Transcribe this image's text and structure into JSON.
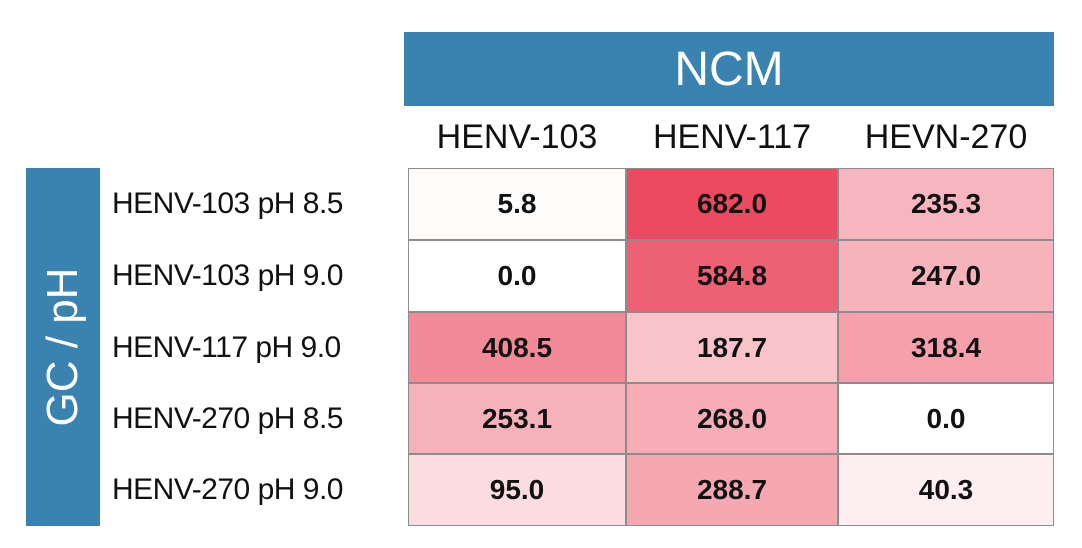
{
  "chart_data": {
    "type": "heatmap",
    "column_group_label": "NCM",
    "row_group_label": "GC / pH",
    "columns": [
      "HENV-103",
      "HENV-117",
      "HEVN-270"
    ],
    "rows": [
      "HENV-103 pH 8.5",
      "HENV-103 pH 9.0",
      "HENV-117 pH 9.0",
      "HENV-270 pH 8.5",
      "HENV-270 pH 9.0"
    ],
    "values": [
      [
        "5.8",
        "682.0",
        "235.3"
      ],
      [
        "0.0",
        "584.8",
        "247.0"
      ],
      [
        "408.5",
        "187.7",
        "318.4"
      ],
      [
        "253.1",
        "268.0",
        "0.0"
      ],
      [
        "95.0",
        "288.7",
        "40.3"
      ]
    ],
    "color_scale": {
      "low": "#ffffff",
      "high": "#ec4a60",
      "min": 0,
      "max": 682
    }
  },
  "colors": {
    "banner": "#3a82b0",
    "grid_border": "#8c8c8c"
  }
}
